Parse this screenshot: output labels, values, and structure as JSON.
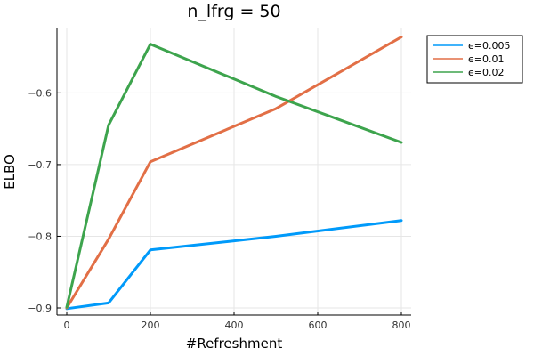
{
  "chart_data": {
    "type": "line",
    "title": "n_lfrg = 50",
    "xlabel": "#Refreshment",
    "ylabel": "ELBO",
    "xlim": [
      0,
      800
    ],
    "ylim": [
      -0.9,
      -0.53
    ],
    "xticks": [
      0,
      200,
      400,
      600,
      800
    ],
    "yticks": [
      -0.9,
      -0.8,
      -0.7,
      -0.6
    ],
    "xtick_labels": [
      "0",
      "200",
      "400",
      "600",
      "800"
    ],
    "ytick_labels": [
      "−0.9",
      "−0.8",
      "−0.7",
      "−0.6"
    ],
    "grid": true,
    "legend_position": "top-right",
    "series": [
      {
        "name": "ϵ=0.005",
        "color": "#009AFA",
        "x": [
          0,
          100,
          200,
          500,
          800
        ],
        "y": [
          -0.901,
          -0.893,
          -0.819,
          -0.8,
          -0.778
        ]
      },
      {
        "name": "ϵ=0.01",
        "color": "#E26F46",
        "x": [
          0,
          100,
          200,
          500,
          800
        ],
        "y": [
          -0.9,
          -0.804,
          -0.696,
          -0.622,
          -0.522
        ]
      },
      {
        "name": "ϵ=0.02",
        "color": "#3DA44D",
        "x": [
          0,
          100,
          200,
          500,
          800
        ],
        "y": [
          -0.899,
          -0.645,
          -0.532,
          -0.605,
          -0.669
        ]
      }
    ]
  }
}
